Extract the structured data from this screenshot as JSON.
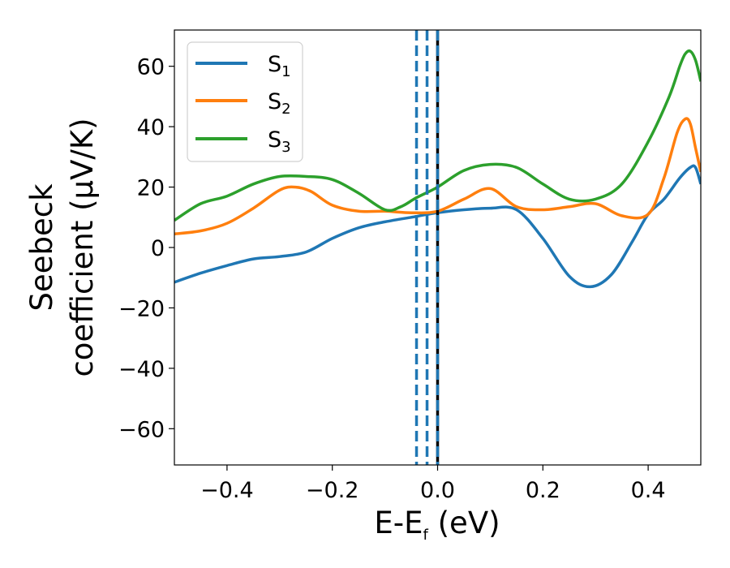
{
  "chart_data": {
    "type": "line",
    "title": "",
    "xlabel": {
      "main": "E-E",
      "sub": "f",
      "unit": " (eV)"
    },
    "ylabel": {
      "line1": "Seebeck",
      "line2": "coefficient  (μV/K)"
    },
    "xlim": [
      -0.5,
      0.5
    ],
    "ylim": [
      -72,
      72
    ],
    "xticks": [
      -0.4,
      -0.2,
      0.0,
      0.2,
      0.4
    ],
    "xtick_labels": [
      "−0.4",
      "−0.2",
      "0.0",
      "0.2",
      "0.4"
    ],
    "yticks": [
      -60,
      -40,
      -20,
      0,
      20,
      40,
      60
    ],
    "ytick_labels": [
      "−60",
      "−40",
      "−20",
      "0",
      "20",
      "40",
      "60"
    ],
    "grid": false,
    "legend_position": "top-left",
    "series": [
      {
        "name": "S",
        "sub": "1",
        "color": "#1f77b4",
        "x": [
          -0.5,
          -0.45,
          -0.4,
          -0.35,
          -0.3,
          -0.25,
          -0.2,
          -0.15,
          -0.1,
          -0.05,
          0.0,
          0.05,
          0.1,
          0.15,
          0.2,
          0.25,
          0.29,
          0.33,
          0.37,
          0.4,
          0.43,
          0.46,
          0.48,
          0.49,
          0.5
        ],
        "y": [
          -11.5,
          -8.5,
          -6,
          -3.8,
          -3,
          -1.5,
          3,
          6.5,
          8.5,
          10,
          11.5,
          12.5,
          13,
          12.5,
          3,
          -9.5,
          -13,
          -9,
          2,
          11,
          16,
          23,
          26.5,
          26.5,
          21
        ]
      },
      {
        "name": "S",
        "sub": "2",
        "color": "#ff7f0e",
        "x": [
          -0.5,
          -0.45,
          -0.4,
          -0.35,
          -0.3,
          -0.27,
          -0.24,
          -0.2,
          -0.15,
          -0.1,
          -0.05,
          0.0,
          0.05,
          0.1,
          0.15,
          0.2,
          0.25,
          0.3,
          0.35,
          0.4,
          0.43,
          0.455,
          0.47,
          0.48,
          0.49,
          0.5
        ],
        "y": [
          4.5,
          5.5,
          8,
          13,
          19,
          20,
          18.5,
          14,
          12,
          12,
          11.5,
          12,
          16,
          19.5,
          13.5,
          12.5,
          13.5,
          14.5,
          10.5,
          11,
          23,
          38,
          42.5,
          41,
          33,
          25
        ]
      },
      {
        "name": "S",
        "sub": "3",
        "color": "#2ca02c",
        "x": [
          -0.5,
          -0.45,
          -0.4,
          -0.35,
          -0.3,
          -0.25,
          -0.2,
          -0.15,
          -0.1,
          -0.07,
          -0.04,
          0.0,
          0.05,
          0.1,
          0.15,
          0.2,
          0.25,
          0.3,
          0.35,
          0.4,
          0.44,
          0.46,
          0.47,
          0.48,
          0.49,
          0.5
        ],
        "y": [
          9,
          14.5,
          17,
          21,
          23.5,
          23.5,
          22.5,
          18,
          12.5,
          13.5,
          16.5,
          20,
          25.5,
          27.5,
          26.5,
          21,
          16,
          16,
          21,
          35,
          50,
          60,
          64,
          65,
          62,
          55
        ]
      }
    ],
    "vlines": [
      {
        "x": -0.04,
        "color": "#1f77b4",
        "style": "dashed"
      },
      {
        "x": -0.02,
        "color": "#1f77b4",
        "style": "dashed"
      },
      {
        "x": 0.0,
        "color": "#000000",
        "style": "solid"
      },
      {
        "x": 0.0,
        "color": "#1f77b4",
        "style": "dashed"
      }
    ]
  }
}
